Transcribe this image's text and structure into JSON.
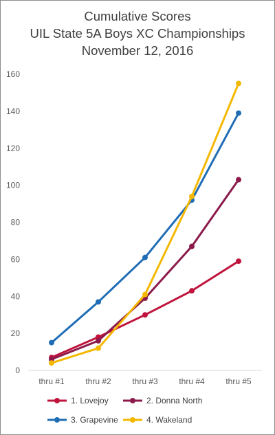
{
  "chart_data": {
    "type": "line",
    "title": "Cumulative Scores",
    "subtitle": "UIL State 5A Boys XC Championships",
    "date": "November 12, 2016",
    "xlabel": "",
    "ylabel": "",
    "categories": [
      "thru #1",
      "thru #2",
      "thru #3",
      "thru #4",
      "thru #5"
    ],
    "ylim": [
      0,
      160
    ],
    "yticks": [
      0,
      20,
      40,
      60,
      80,
      100,
      120,
      140,
      160
    ],
    "grid": false,
    "legend_position": "bottom",
    "series": [
      {
        "name": "1. Lovejoy",
        "color": "#c0143c",
        "values": [
          7,
          18,
          30,
          43,
          59
        ]
      },
      {
        "name": "2. Donna North",
        "color": "#8b1a4a",
        "values": [
          6,
          16,
          39,
          67,
          103
        ]
      },
      {
        "name": "3. Grapevine",
        "color": "#1f6db5",
        "values": [
          15,
          37,
          61,
          92,
          139
        ]
      },
      {
        "name": "4. Wakeland",
        "color": "#f5b800",
        "values": [
          4,
          12,
          41,
          94,
          155
        ]
      }
    ]
  }
}
